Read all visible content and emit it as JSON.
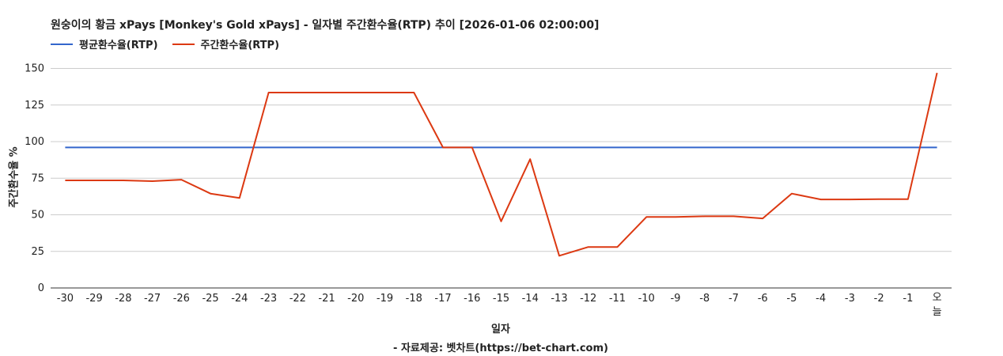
{
  "chart_data": {
    "type": "line",
    "title": "원숭이의 황금 xPays [Monkey's Gold xPays] - 일자별 주간환수율(RTP) 추이 [2026-01-06 02:00:00]",
    "xlabel": "일자",
    "ylabel": "주간환수율 %",
    "source": "- 자료제공: 벳차트(https://bet-chart.com)",
    "legend_position": "top-left",
    "grid": true,
    "ylim": [
      0,
      160
    ],
    "yticks": [
      "0",
      "25",
      "50",
      "75",
      "100",
      "125",
      "150"
    ],
    "categories": [
      "-30",
      "-29",
      "-28",
      "-27",
      "-26",
      "-25",
      "-24",
      "-23",
      "-22",
      "-21",
      "-20",
      "-19",
      "-18",
      "-17",
      "-16",
      "-15",
      "-14",
      "-13",
      "-12",
      "-11",
      "-10",
      "-9",
      "-8",
      "-7",
      "-6",
      "-5",
      "-4",
      "-3",
      "-2",
      "-1",
      "오늘"
    ],
    "series": [
      {
        "name": "평균환수율(RTP)",
        "color": "#3366cc",
        "values": [
          96,
          96,
          96,
          96,
          96,
          96,
          96,
          96,
          96,
          96,
          96,
          96,
          96,
          96,
          96,
          96,
          96,
          96,
          96,
          96,
          96,
          96,
          96,
          96,
          96,
          96,
          96,
          96,
          96,
          96,
          96
        ]
      },
      {
        "name": "주간환수율(RTP)",
        "color": "#dc3912",
        "values": [
          73.5,
          73.5,
          73.5,
          73,
          74,
          64.5,
          61.5,
          133.5,
          133.5,
          133.5,
          133.5,
          133.5,
          133.5,
          96,
          96,
          45.5,
          88,
          22,
          28,
          28,
          48.5,
          48.5,
          49,
          49,
          47.5,
          64.5,
          60.5,
          60.5,
          60.7,
          60.7,
          147
        ]
      }
    ]
  }
}
